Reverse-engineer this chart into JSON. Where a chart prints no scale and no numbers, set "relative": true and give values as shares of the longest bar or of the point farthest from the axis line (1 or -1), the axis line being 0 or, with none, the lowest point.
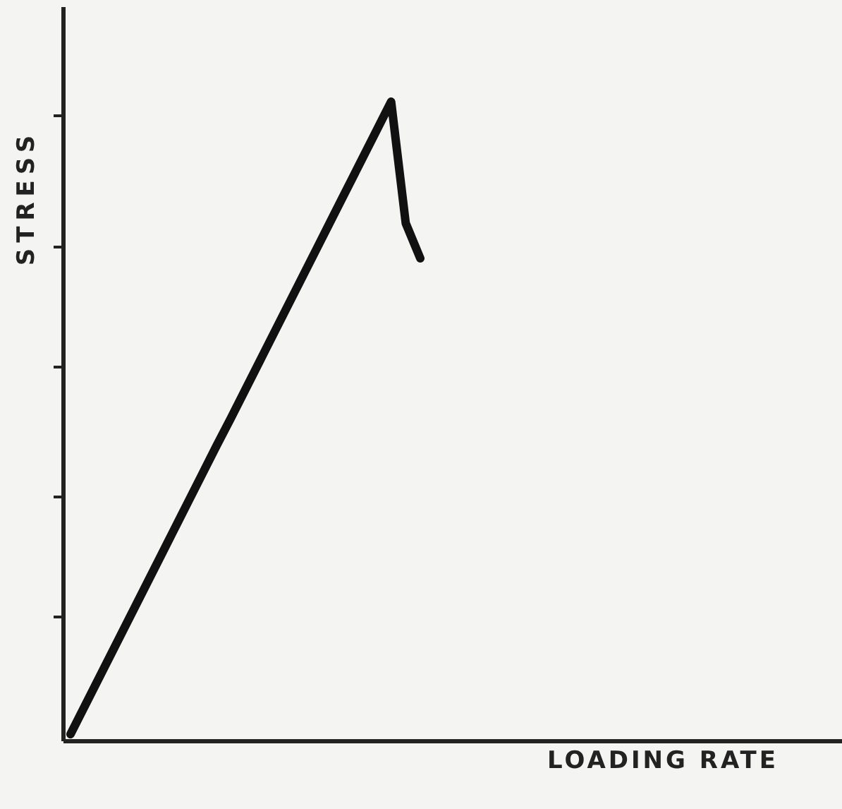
{
  "chart_data": {
    "type": "line",
    "relative": true,
    "xlabel": "LOADING RATE",
    "ylabel": "STRESS",
    "categories": [
      null,
      null,
      null,
      null,
      null,
      null,
      null,
      null,
      null,
      null,
      null,
      null,
      null,
      null,
      null,
      null,
      null,
      null,
      null,
      null,
      null,
      null,
      null,
      null,
      null
    ],
    "series": [
      {
        "color": "#111111",
        "values": [
          0.011,
          0.056,
          0.101,
          0.146,
          0.191,
          0.236,
          0.281,
          0.326,
          0.371,
          0.416,
          0.461,
          0.505,
          0.55,
          0.595,
          0.64,
          0.685,
          0.73,
          0.775,
          0.82,
          0.865,
          0.91,
          0.955,
          1,
          0.81,
          0.755
        ]
      }
    ],
    "marker": "none",
    "line_style": "solid"
  }
}
